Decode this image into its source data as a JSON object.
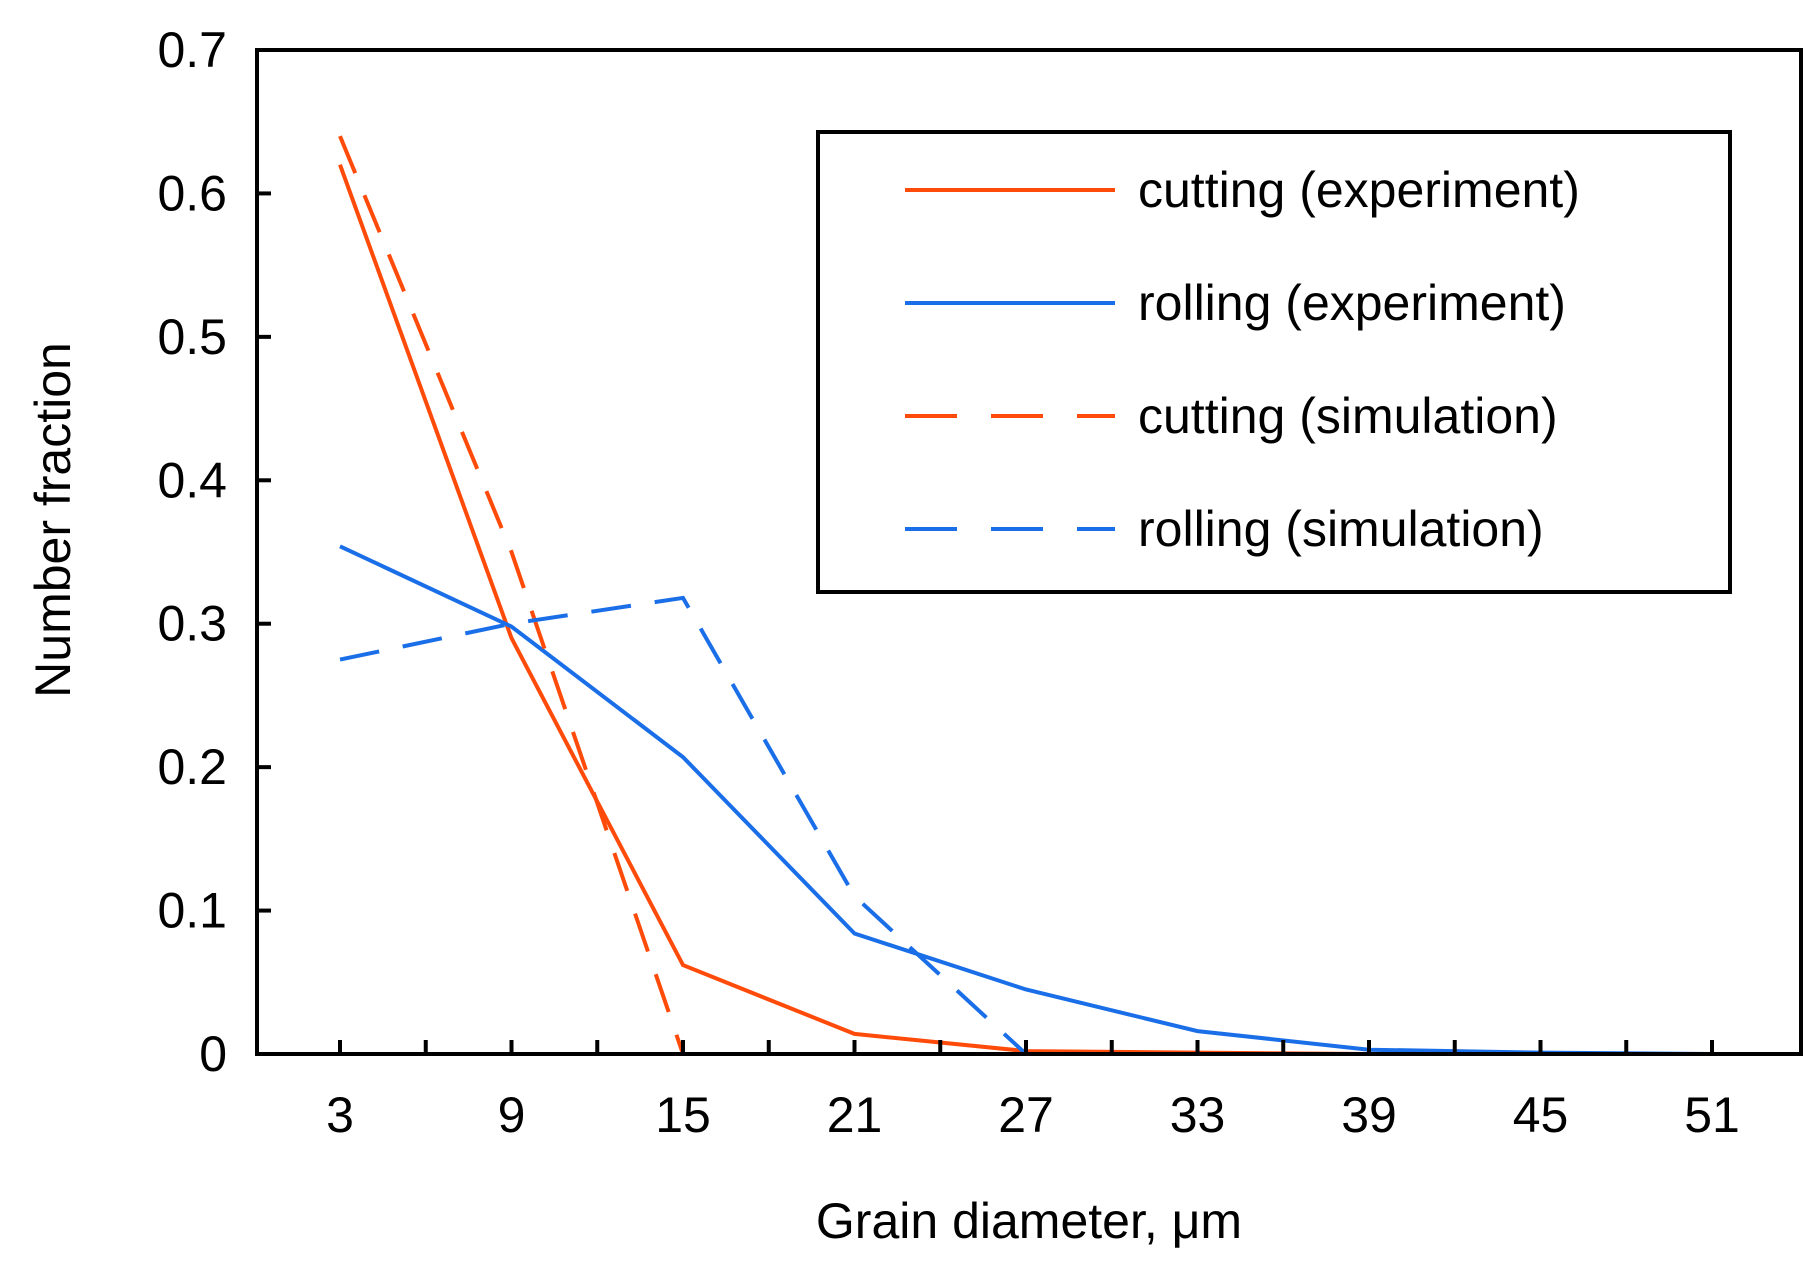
{
  "chart_data": {
    "type": "line",
    "title": "",
    "xlabel": "Grain diameter, μm",
    "ylabel": "Number fraction",
    "categories": [
      "3",
      "9",
      "15",
      "21",
      "27",
      "33",
      "39",
      "45",
      "51"
    ],
    "x": [
      3,
      9,
      15,
      21,
      27,
      33,
      39,
      45,
      51
    ],
    "ylim": [
      0,
      0.7
    ],
    "yticks": [
      0,
      0.1,
      0.2,
      0.3,
      0.4,
      0.5,
      0.6,
      0.7
    ],
    "ytick_labels": [
      "0",
      "0.1",
      "0.2",
      "0.3",
      "0.4",
      "0.5",
      "0.6",
      "0.7"
    ],
    "grid": false,
    "legend_position": "top-right",
    "series": [
      {
        "name": "cutting (experiment)",
        "color": "#FF4B0A",
        "style": "solid",
        "values": [
          0.62,
          0.29,
          0.062,
          0.014,
          0.002,
          0.001,
          0.0,
          0.0,
          0.0
        ]
      },
      {
        "name": "rolling (experiment)",
        "color": "#1A6FE8",
        "style": "solid",
        "values": [
          0.354,
          0.298,
          0.207,
          0.084,
          0.045,
          0.016,
          0.003,
          0.001,
          0.0
        ]
      },
      {
        "name": "cutting (simulation)",
        "color": "#FF4B0A",
        "style": "dashed",
        "values": [
          0.64,
          0.35,
          0.0,
          0.0,
          0.0,
          0.0,
          0.0,
          0.0,
          0.0
        ]
      },
      {
        "name": "rolling (simulation)",
        "color": "#1A6FE8",
        "style": "dashed",
        "values": [
          0.275,
          0.3,
          0.318,
          0.11,
          0.0,
          0.0,
          0.0,
          0.0,
          0.0
        ]
      }
    ]
  }
}
